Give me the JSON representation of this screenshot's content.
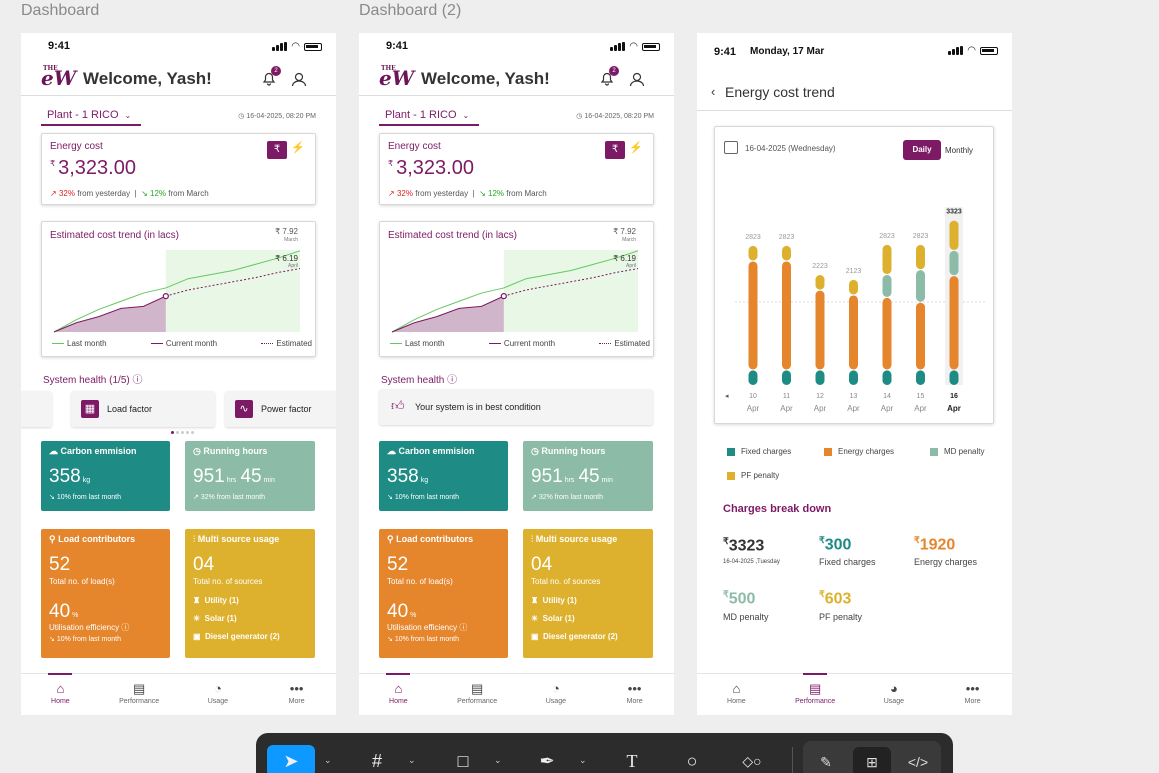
{
  "boards": {
    "dashboard": "Dashboard",
    "dashboard2": "Dashboard (2)"
  },
  "status": {
    "time": "9:41",
    "date": "Monday, 17 Mar"
  },
  "header": {
    "welcome": "Welcome, Yash!",
    "logo": "eW",
    "logo_small": "THE",
    "notif_count": "2"
  },
  "plant": {
    "label": "Plant - 1 RICO",
    "timestamp": "16-04-2025, 08:20 PM"
  },
  "energy_cost": {
    "label": "Energy cost",
    "currency": "₹",
    "value": "3,323.00",
    "change1_pct": "32%",
    "change1_text": "from yesterday",
    "change2_pct": "12%",
    "change2_text": "from March",
    "rupee_btn": "₹",
    "bolt_btn": "⚡"
  },
  "trend": {
    "title": "Estimated cost trend (in lacs)",
    "march_value": "₹ 7.92",
    "march_label": "March",
    "april_value": "₹ 6.19",
    "april_label": "April",
    "legend": [
      "Last month",
      "Current month",
      "Estimated"
    ],
    "colors": {
      "last": "#64c860",
      "current": "#7c1a66",
      "fill": "#c9a9c2",
      "est_fill": "#e9f7e6"
    }
  },
  "system_health": {
    "title1": "System health (1/5)",
    "title2": "System health",
    "tiles": [
      "Load factor",
      "Power factor"
    ],
    "best": "Your system is in best condition"
  },
  "kpis": {
    "carbon": {
      "title": "Carbon emmision",
      "value": "358",
      "unit": "kg",
      "foot": "10% from last month"
    },
    "running": {
      "title": "Running hours",
      "hrs": "951",
      "hrs_unit": "hrs",
      "min": "45",
      "min_unit": "min",
      "foot": "32% from last month"
    },
    "load": {
      "title": "Load contributors",
      "value": "52",
      "sub": "Total no. of load(s)",
      "eff": "40",
      "eff_unit": "%",
      "eff_label": "Utilisation efficiency",
      "foot": "10% from last month"
    },
    "multi": {
      "title": "Multi source usage",
      "value": "04",
      "sub": "Total no. of sources",
      "sources": [
        "Utility (1)",
        "Solar (1)",
        "Diesel generator (2)"
      ]
    }
  },
  "nav": [
    "Home",
    "Performance",
    "Usage",
    "More"
  ],
  "cost_trend_page": {
    "back": "‹",
    "title": "Energy cost trend",
    "date": "16-04-2025 (Wednesday)",
    "toggle": [
      "Daily",
      "Monthly"
    ],
    "legend": [
      "Fixed charges",
      "Energy charges",
      "MD penalty",
      "PF penalty"
    ],
    "colors": {
      "fixed": "#1e8b85",
      "energy": "#e5852c",
      "md": "#8cbba8",
      "pf": "#ddb02d"
    },
    "breakdown_title": "Charges break down",
    "breakdown": {
      "total": "3323",
      "total_sub": "16-04-2025 ,Tuesday",
      "fixed": "300",
      "fixed_label": "Fixed charges",
      "energy": "1920",
      "energy_label": "Energy charges",
      "md": "500",
      "md_label": "MD penalty",
      "pf": "603",
      "pf_label": "PF penalty",
      "currency": "₹"
    }
  },
  "chart_data": [
    {
      "type": "line",
      "title": "Estimated cost trend (in lacs)",
      "series": [
        {
          "name": "Last month",
          "values": [
            0,
            1.2,
            2.2,
            3.0,
            3.8,
            4.3,
            5.2,
            5.6,
            6.0,
            6.6,
            7.2,
            7.92
          ]
        },
        {
          "name": "Current month",
          "values": [
            0,
            0.9,
            1.5,
            2.3,
            2.5,
            3.5,
            null,
            null,
            null,
            null,
            null,
            null
          ]
        },
        {
          "name": "Estimated",
          "values": [
            null,
            null,
            null,
            null,
            null,
            3.5,
            4.1,
            4.5,
            4.9,
            5.3,
            5.8,
            6.19
          ]
        }
      ],
      "annotations": [
        "₹ 7.92 March",
        "₹ 6.19 April"
      ]
    },
    {
      "type": "bar",
      "stacked": true,
      "categories": [
        "10",
        "11",
        "12",
        "13",
        "14",
        "15",
        "16"
      ],
      "category_sub": "Apr",
      "highlight": "16",
      "totals": [
        2823,
        2823,
        2223,
        2123,
        2823,
        2823,
        3323
      ],
      "series": [
        {
          "name": "Fixed charges",
          "values": [
            300,
            300,
            300,
            300,
            300,
            300,
            300
          ]
        },
        {
          "name": "Energy charges",
          "values": [
            2223,
            2223,
            1623,
            1523,
            1473,
            1373,
            1920
          ]
        },
        {
          "name": "MD penalty",
          "values": [
            0,
            0,
            0,
            0,
            450,
            650,
            500
          ]
        },
        {
          "name": "PF penalty",
          "values": [
            300,
            300,
            300,
            300,
            600,
            500,
            603
          ]
        }
      ],
      "ylim": [
        0,
        3500
      ]
    }
  ],
  "toolbar": {
    "tools": [
      "move-tool",
      "frame-tool",
      "shape-tool",
      "pen-tool",
      "text-tool",
      "comment-tool",
      "assets-tool"
    ],
    "modes": [
      "draw",
      "design",
      "dev"
    ]
  }
}
